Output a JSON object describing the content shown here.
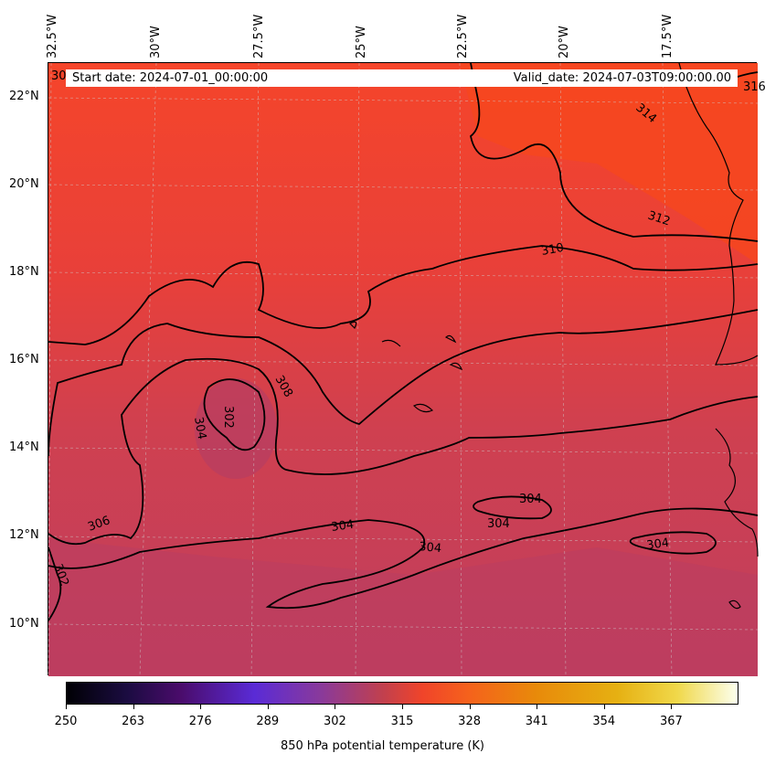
{
  "map": {
    "longitude_labels": [
      "32.5°W",
      "30°W",
      "27.5°W",
      "25°W",
      "22.5°W",
      "20°W",
      "17.5°W"
    ],
    "latitude_labels": [
      "22°N",
      "20°N",
      "18°N",
      "16°N",
      "14°N",
      "12°N",
      "10°N"
    ],
    "start_date": "Start date: 2024-07-01_00:00:00",
    "valid_date": "Valid_date: 2024-07-03T09:00:00.00",
    "contour_labels": [
      "302",
      "304",
      "306",
      "308",
      "310",
      "312",
      "314",
      "316"
    ],
    "colors": {
      "warm": "#f5421f",
      "mid": "#e0403a",
      "cool": "#bd3f5c",
      "contour": "#000000",
      "grid": "#bfbfbf"
    }
  },
  "colorbar": {
    "ticks": [
      "250",
      "263",
      "276",
      "289",
      "302",
      "315",
      "328",
      "341",
      "354",
      "367"
    ],
    "label": "850 hPa potential temperature (K)"
  }
}
